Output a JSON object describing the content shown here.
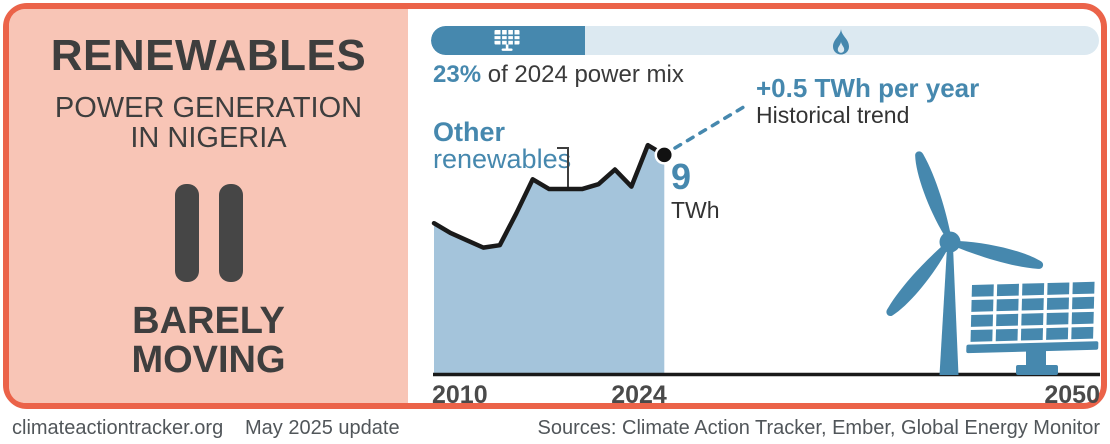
{
  "colors": {
    "accent_orange": "#EB6349",
    "panel_salmon": "#F8C5B6",
    "accent_blue": "#4688AE",
    "area_fill": "#A4C4DB",
    "bar_track": "#DCE9F1",
    "dark_text": "#3E3E3E",
    "line_black": "#1A1A1A",
    "footer_text": "#51565A"
  },
  "left_panel": {
    "title": "RENEWABLES",
    "subtitle_line1": "POWER GENERATION",
    "subtitle_line2": "IN NIGERIA",
    "status_icon": "pause-icon",
    "verdict_line1": "BARELY",
    "verdict_line2": "MOVING"
  },
  "power_mix": {
    "percent": 23,
    "percent_label": "23%",
    "caption": " of 2024 power mix",
    "left_icon": "solar-panel-icon",
    "right_icon": "gas-flame-icon"
  },
  "chart": {
    "series_label_line1": "Other",
    "series_label_line2": "renewables",
    "trend_label": "+0.5 TWh per year",
    "trend_sublabel": "Historical trend",
    "end_value": "9",
    "end_unit": "TWh",
    "x_ticks": [
      "2010",
      "2024",
      "2050"
    ]
  },
  "chart_data": {
    "type": "area",
    "title": "Other renewables power generation in Nigeria",
    "series_label": "Other renewables",
    "unit": "TWh",
    "x": [
      2010,
      2011,
      2012,
      2013,
      2014,
      2015,
      2016,
      2017,
      2018,
      2019,
      2020,
      2021,
      2022,
      2023,
      2024
    ],
    "values": [
      6.2,
      5.8,
      5.5,
      5.2,
      5.3,
      6.6,
      8.0,
      7.6,
      7.6,
      7.6,
      7.8,
      8.4,
      7.7,
      9.4,
      9.0
    ],
    "end_point": {
      "year": 2024,
      "value": 9,
      "unit": "TWh"
    },
    "historical_trend_twh_per_year": 0.5,
    "share_of_2024_power_mix_percent": 23,
    "x_axis_range": [
      2010,
      2050
    ],
    "ylim": [
      0,
      10.5
    ],
    "x_tick_labels": [
      "2010",
      "2024",
      "2050"
    ],
    "grid": false,
    "legend_position": "none"
  },
  "footer": {
    "site": "climateactiontracker.org",
    "update": "May 2025 update",
    "sources": "Sources: Climate Action Tracker, Ember, Global Energy Monitor"
  }
}
